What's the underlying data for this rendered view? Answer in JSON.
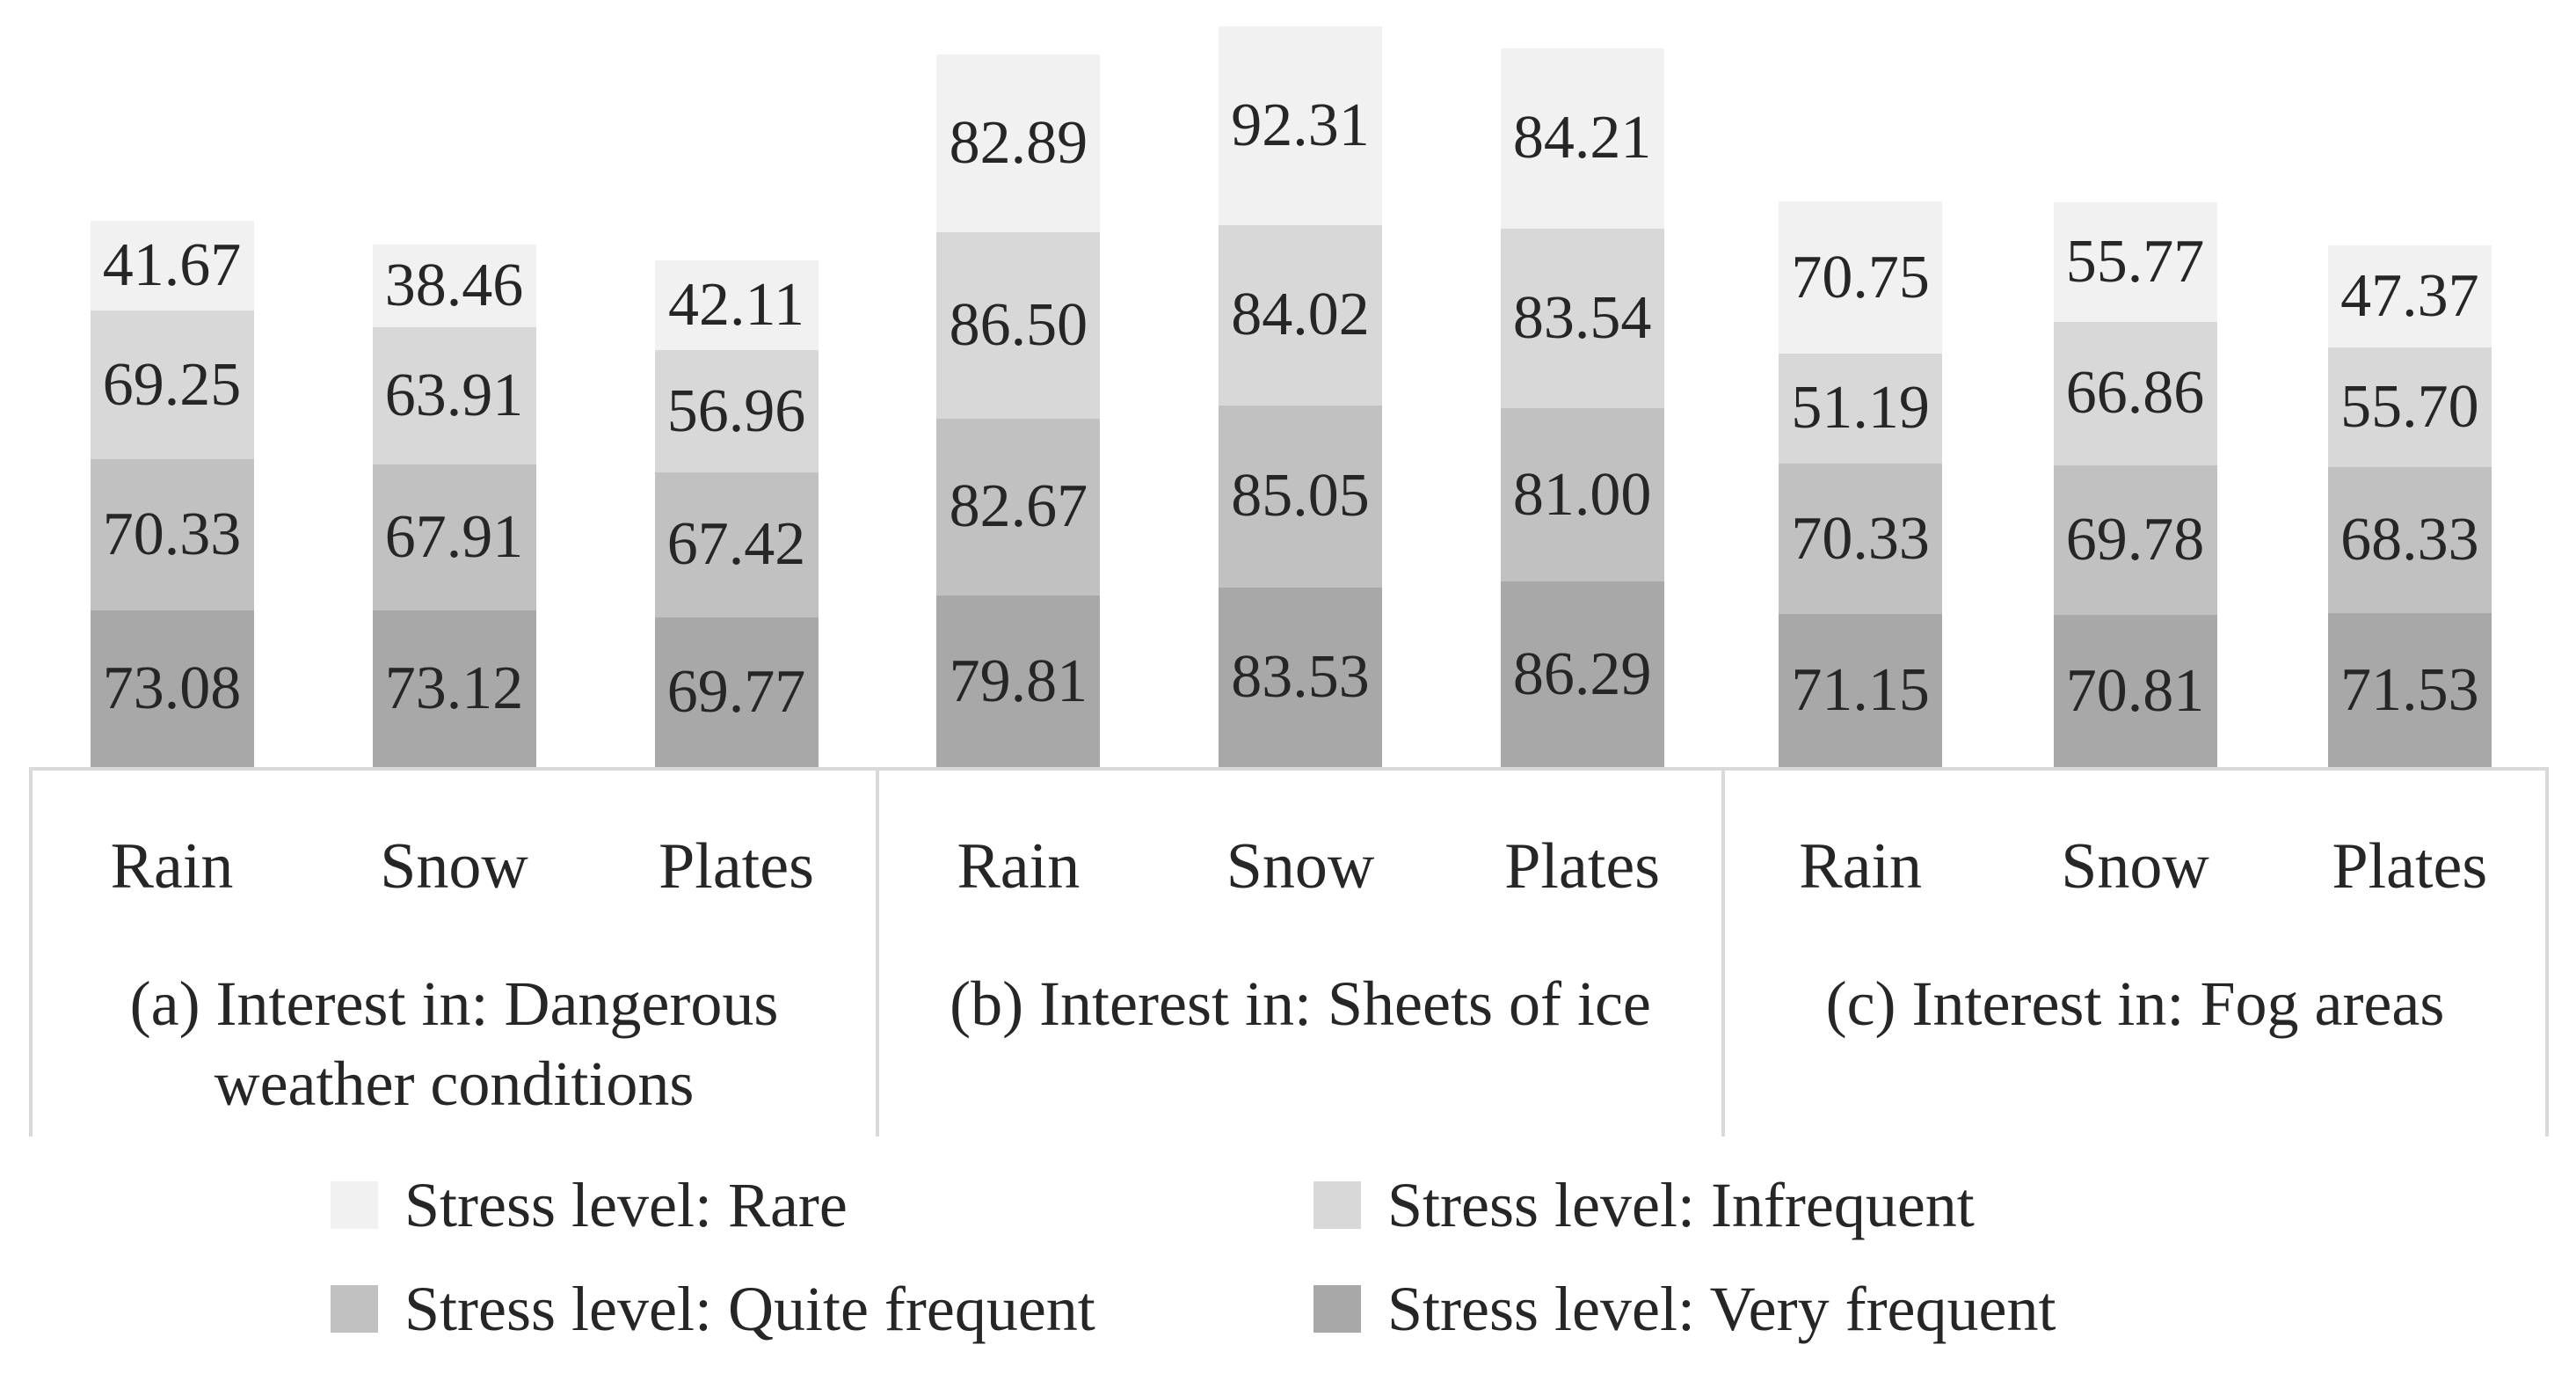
{
  "chart_data": {
    "type": "bar",
    "stacked": true,
    "orientation": "vertical",
    "value_labels": "inside-center",
    "value_label_decimals": 2,
    "categories": [
      "Rain",
      "Snow",
      "Plates"
    ],
    "series_top_to_bottom": [
      "Stress level: Rare",
      "Stress level: Infrequent",
      "Stress level: Quite frequent",
      "Stress level: Very frequent"
    ],
    "series_colors": [
      "#f1f1f1",
      "#d8d8d8",
      "#c1c1c1",
      "#a8a8a8"
    ],
    "axis": {
      "baseline_color": "#d9d9d9",
      "gridlines": false
    },
    "groups": [
      {
        "id": "a",
        "caption": "(a) Interest in: Dangerous weather conditions",
        "categories": [
          "Rain",
          "Snow",
          "Plates"
        ],
        "series": [
          {
            "name": "Stress level: Rare",
            "values": [
              41.67,
              38.46,
              42.11
            ]
          },
          {
            "name": "Stress level: Infrequent",
            "values": [
              69.25,
              63.91,
              56.96
            ]
          },
          {
            "name": "Stress level: Quite frequent",
            "values": [
              70.33,
              67.91,
              67.42
            ]
          },
          {
            "name": "Stress level: Very frequent",
            "values": [
              73.08,
              73.12,
              69.77
            ]
          }
        ]
      },
      {
        "id": "b",
        "caption": "(b) Interest in: Sheets of ice",
        "categories": [
          "Rain",
          "Snow",
          "Plates"
        ],
        "series": [
          {
            "name": "Stress level: Rare",
            "values": [
              82.89,
              92.31,
              84.21
            ]
          },
          {
            "name": "Stress level: Infrequent",
            "values": [
              86.5,
              84.02,
              83.54
            ]
          },
          {
            "name": "Stress level: Quite frequent",
            "values": [
              82.67,
              85.05,
              81.0
            ]
          },
          {
            "name": "Stress level: Very frequent",
            "values": [
              79.81,
              83.53,
              86.29
            ]
          }
        ]
      },
      {
        "id": "c",
        "caption": "(c) Interest in: Fog areas",
        "categories": [
          "Rain",
          "Snow",
          "Plates"
        ],
        "series": [
          {
            "name": "Stress level: Rare",
            "values": [
              70.75,
              55.77,
              47.37
            ]
          },
          {
            "name": "Stress level: Infrequent",
            "values": [
              51.19,
              66.86,
              55.7
            ]
          },
          {
            "name": "Stress level: Quite frequent",
            "values": [
              70.33,
              69.78,
              68.33
            ]
          },
          {
            "name": "Stress level: Very frequent",
            "values": [
              71.15,
              70.81,
              71.53
            ]
          }
        ]
      }
    ],
    "legend": {
      "position": "bottom",
      "columns": 2,
      "items": [
        {
          "label": "Stress level: Rare",
          "color": "#f1f1f1"
        },
        {
          "label": "Stress level: Infrequent",
          "color": "#d8d8d8"
        },
        {
          "label": "Stress level: Quite frequent",
          "color": "#c1c1c1"
        },
        {
          "label": "Stress level: Very frequent",
          "color": "#a8a8a8"
        }
      ]
    }
  }
}
